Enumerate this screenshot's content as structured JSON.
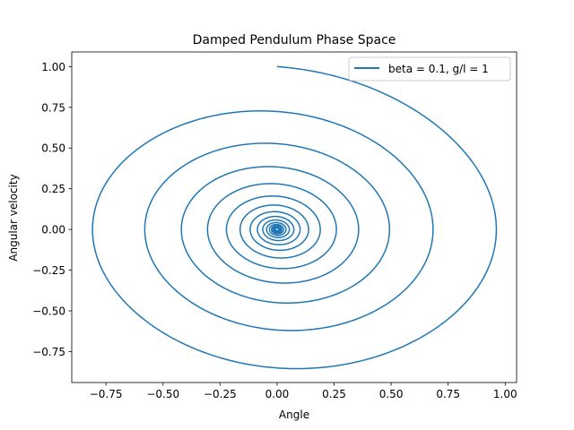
{
  "chart_data": {
    "type": "line",
    "title": "Damped Pendulum Phase Space",
    "xlabel": "Angle",
    "ylabel": "Angular velocity",
    "xlim": [
      -0.9,
      1.05
    ],
    "ylim": [
      -0.94,
      1.09
    ],
    "xticks": [
      -0.75,
      -0.5,
      -0.25,
      0.0,
      0.25,
      0.5,
      0.75,
      1.0
    ],
    "xtick_labels": [
      "−0.75",
      "−0.50",
      "−0.25",
      "0.00",
      "0.25",
      "0.50",
      "0.75",
      "1.00"
    ],
    "yticks": [
      -0.75,
      -0.5,
      -0.25,
      0.0,
      0.25,
      0.5,
      0.75,
      1.0
    ],
    "ytick_labels": [
      "−0.75",
      "−0.50",
      "−0.25",
      "0.00",
      "0.25",
      "0.50",
      "0.75",
      "1.00"
    ],
    "grid": false,
    "legend_position": "top-right",
    "series": [
      {
        "name": "beta = 0.1, g/l = 1",
        "color": "#1f77b4",
        "model": {
          "beta": 0.1,
          "g_over_l": 1,
          "initial_angle": 0.0,
          "initial_angular_velocity": 1.0,
          "t_end": 100
        },
        "values": [
          {
            "x": 0.0,
            "y": 1.0
          },
          {
            "x": 0.95,
            "y": 0.0
          },
          {
            "x": 0.09,
            "y": -0.86
          },
          {
            "x": -0.81,
            "y": 0.0
          },
          {
            "x": -0.08,
            "y": 0.73
          },
          {
            "x": 0.68,
            "y": 0.0
          },
          {
            "x": 0.07,
            "y": -0.62
          },
          {
            "x": -0.58,
            "y": 0.0
          },
          {
            "x": -0.06,
            "y": 0.52
          },
          {
            "x": 0.49,
            "y": 0.0
          },
          {
            "x": 0.05,
            "y": -0.45
          },
          {
            "x": -0.42,
            "y": 0.0
          },
          {
            "x": 0.0,
            "y": 0.0
          }
        ]
      }
    ]
  }
}
